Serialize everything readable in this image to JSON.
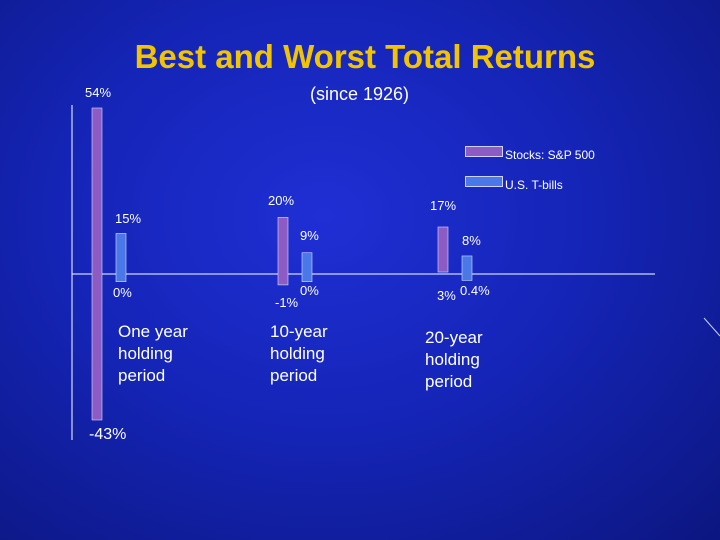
{
  "title": "Best and Worst Total Returns",
  "subtitle": "(since 1926)",
  "colors": {
    "background": "#1525b8",
    "title": "#f2c400",
    "stocks": "#8c5cc4",
    "tbills": "#4a78e8"
  },
  "legend": [
    {
      "label": "Stocks: S&P 500"
    },
    {
      "label": "U.S. T-bills"
    }
  ],
  "periods": [
    "One year holding period",
    "10-year holding period",
    "20-year holding period"
  ],
  "chart_data": {
    "type": "bar",
    "title": "Best and Worst Total Returns",
    "subtitle": "(since 1926)",
    "categories": [
      "One year holding period",
      "10-year holding period",
      "20-year holding period"
    ],
    "series": [
      {
        "name": "Stocks: S&P 500",
        "best": [
          54,
          20,
          17
        ],
        "worst": [
          -43,
          -1,
          3
        ]
      },
      {
        "name": "U.S. T-bills",
        "best": [
          15,
          9,
          8
        ],
        "worst": [
          0,
          0,
          0.4
        ]
      }
    ],
    "data_labels": {
      "stocks_best": [
        "54%",
        "20%",
        "17%"
      ],
      "stocks_worst": [
        "-43%",
        "-1%",
        "3%"
      ],
      "tbills_best": [
        "15%",
        "9%",
        "8%"
      ],
      "tbills_worst": [
        "0%",
        "0%",
        "0.4%"
      ]
    },
    "ylim": [
      -43,
      54
    ],
    "legend_position": "top-right",
    "grid": false
  }
}
